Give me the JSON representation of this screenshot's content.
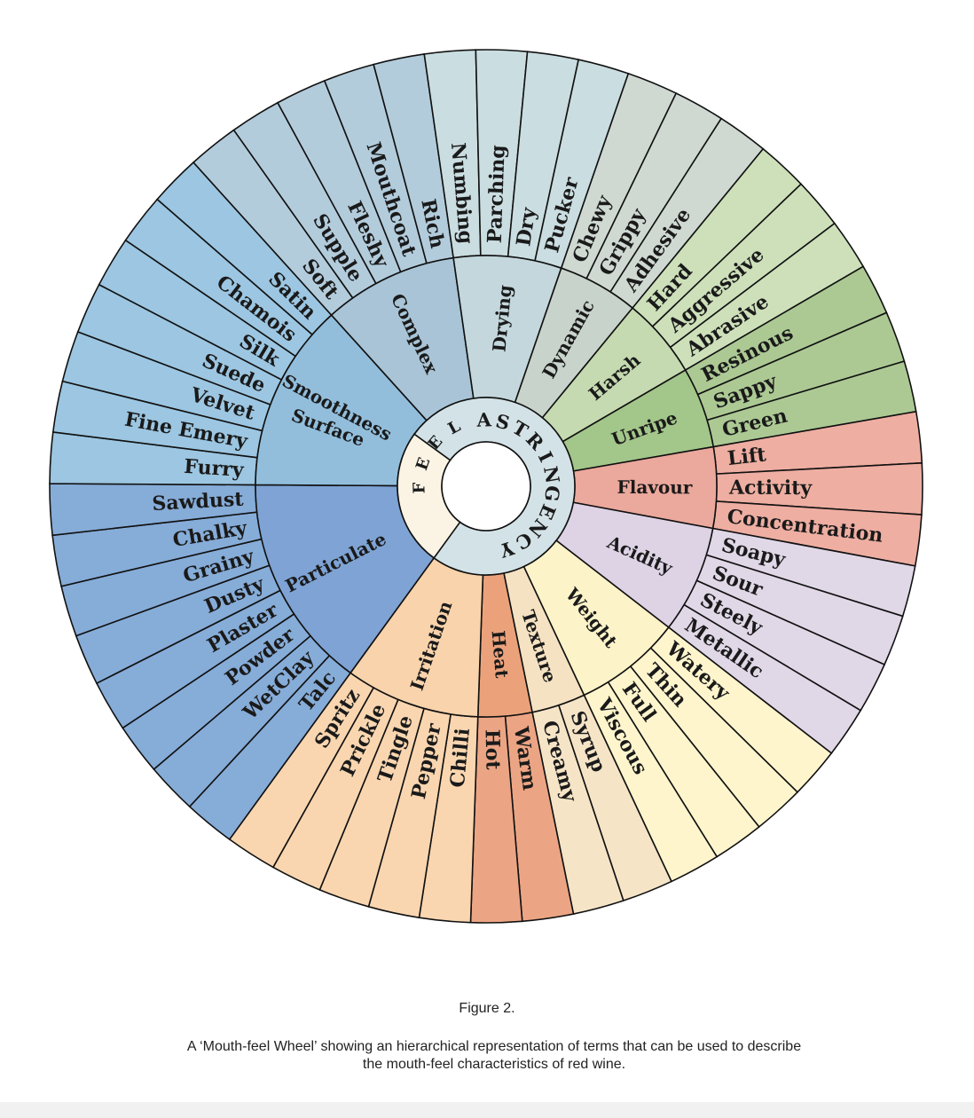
{
  "center": {
    "feel": "FEEL",
    "astringency": "ASTRINGENCY"
  },
  "categories": [
    {
      "label": "Particulate",
      "color": "#7ea3d4",
      "outer_color": "#86acd8",
      "items": [
        "Talc",
        "WetClay",
        "Powder",
        "Plaster",
        "Dusty",
        "Grainy",
        "Chalky",
        "Sawdust"
      ]
    },
    {
      "label": "Surface Smoothness",
      "color": "#92bedc",
      "outer_color": "#9cc6e1",
      "items": [
        "Furry",
        "Fine Emery",
        "Velvet",
        "Suede",
        "Silk",
        "Chamois",
        "Satin"
      ]
    },
    {
      "label": "Complex",
      "color": "#a8c4d6",
      "outer_color": "#b3ccdc",
      "items": [
        "Soft",
        "Supple",
        "Fleshy",
        "Mouthcoat",
        "Rich"
      ]
    },
    {
      "label": "Drying",
      "color": "#c3d7dc",
      "outer_color": "#cadde1",
      "items": [
        "Numbing",
        "Parching",
        "Dry",
        "Pucker"
      ]
    },
    {
      "label": "Dynamic",
      "color": "#c8d3cb",
      "outer_color": "#cfd9d2",
      "items": [
        "Chewy",
        "Grippy",
        "Adhesive"
      ]
    },
    {
      "label": "Harsh",
      "color": "#c5dab0",
      "outer_color": "#cde0ba",
      "items": [
        "Hard",
        "Aggressive",
        "Abrasive"
      ]
    },
    {
      "label": "Unripe",
      "color": "#a3c68a",
      "outer_color": "#acc994",
      "items": [
        "Resinous",
        "Sappy",
        "Green"
      ]
    },
    {
      "label": "Flavour",
      "color": "#eba89c",
      "outer_color": "#eeaea2",
      "items": [
        "Lift",
        "Activity",
        "Concentration"
      ]
    },
    {
      "label": "Acidity",
      "color": "#ddd3e5",
      "outer_color": "#e0d7e7",
      "items": [
        "Soapy",
        "Sour",
        "Steely",
        "Metallic"
      ]
    },
    {
      "label": "Weight",
      "color": "#fdf3c9",
      "outer_color": "#fef5cd",
      "items": [
        "Watery",
        "Thin",
        "Full",
        "Viscous"
      ]
    },
    {
      "label": "Texture",
      "color": "#f5e2c2",
      "outer_color": "#f6e4c7",
      "items": [
        "Syrup",
        "Creamy"
      ]
    },
    {
      "label": "Heat",
      "color": "#eba27b",
      "outer_color": "#eca584",
      "items": [
        "Warm",
        "Hot"
      ]
    },
    {
      "label": "Irritation",
      "color": "#f8d3ab",
      "outer_color": "#f9d6b0",
      "items": [
        "Chilli",
        "Pepper",
        "Tingle",
        "Prickle",
        "Spritz"
      ]
    }
  ],
  "caption": {
    "title": "Figure 2.",
    "text": "A ‘Mouth-feel Wheel’ showing an hierarchical representation of terms that can be used to describe the mouth-feel characteristics of red wine."
  }
}
